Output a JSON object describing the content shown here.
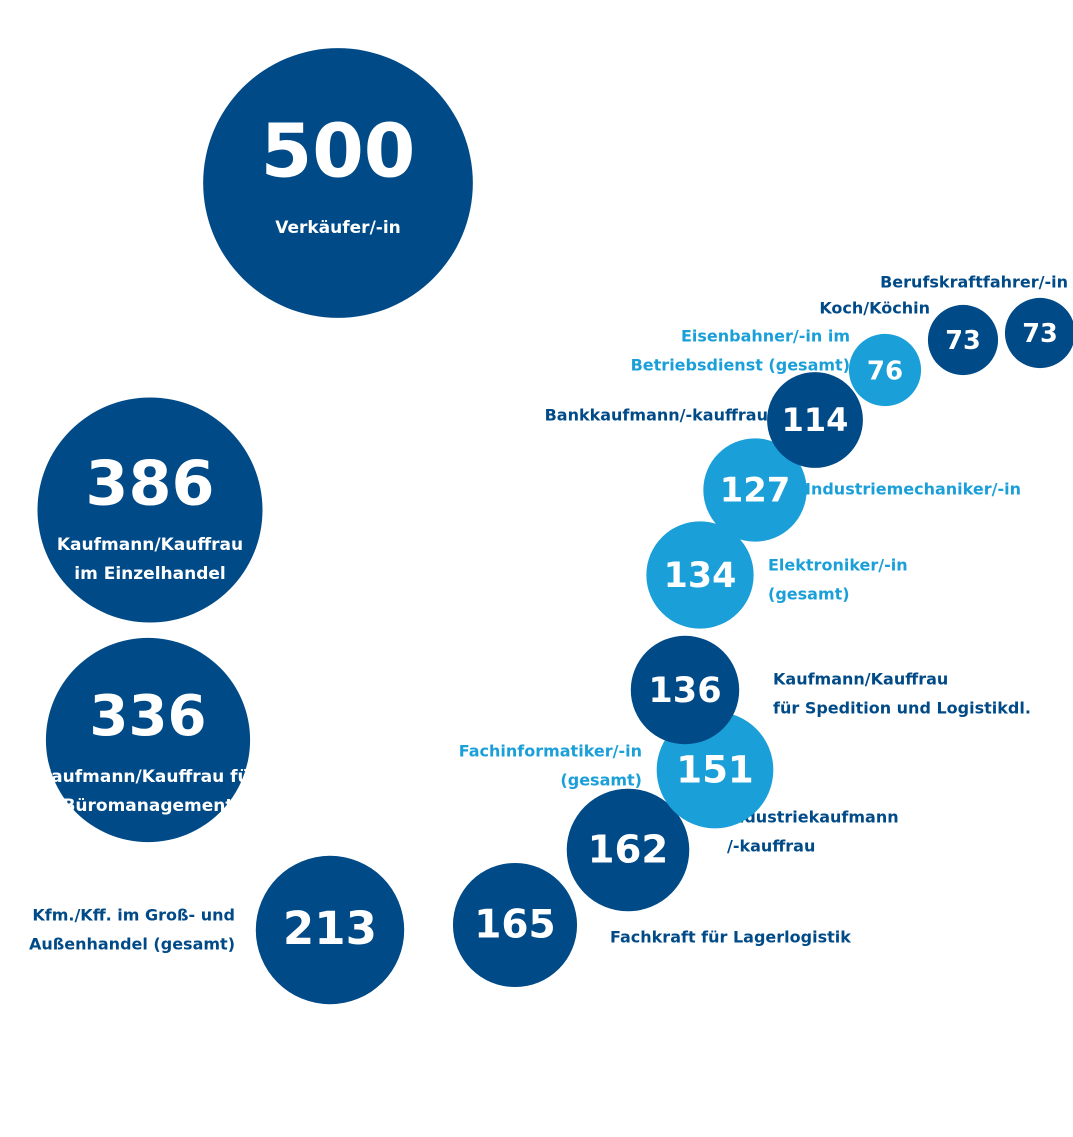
{
  "chart_data": {
    "type": "bubble",
    "colors": {
      "dark": "#004a87",
      "light": "#1a9fd9"
    },
    "items": [
      {
        "value": 500,
        "label": [
          "Verkäufer/-in"
        ],
        "tone": "dark"
      },
      {
        "value": 386,
        "label": [
          "Kaufmann/Kauffrau",
          "im Einzelhandel"
        ],
        "tone": "dark"
      },
      {
        "value": 336,
        "label": [
          "Kaufmann/Kauffrau für",
          "Büromanagement"
        ],
        "tone": "dark"
      },
      {
        "value": 213,
        "label": [
          "Kfm./Kff. im Groß- und",
          "Außenhandel (gesamt)"
        ],
        "tone": "dark"
      },
      {
        "value": 165,
        "label": [
          "Fachkraft für Lagerlogistik"
        ],
        "tone": "dark"
      },
      {
        "value": 162,
        "label": [
          "Industriekaufmann",
          "/-kauffrau"
        ],
        "tone": "dark"
      },
      {
        "value": 151,
        "label": [
          "Fachinformatiker/-in",
          "(gesamt)"
        ],
        "tone": "light"
      },
      {
        "value": 136,
        "label": [
          "Kaufmann/Kauffrau",
          "für Spedition und Logistikdl."
        ],
        "tone": "dark"
      },
      {
        "value": 134,
        "label": [
          "Elektroniker/-in",
          "(gesamt)"
        ],
        "tone": "light"
      },
      {
        "value": 127,
        "label": [
          "Industriemechaniker/-in"
        ],
        "tone": "light"
      },
      {
        "value": 114,
        "label": [
          "Bankkaufmann/-kauffrau"
        ],
        "tone": "dark"
      },
      {
        "value": 76,
        "label": [
          "Eisenbahner/-in im",
          "Betriebsdienst (gesamt)"
        ],
        "tone": "light"
      },
      {
        "value": 73,
        "label": [
          "Koch/Köchin"
        ],
        "tone": "dark"
      },
      {
        "value": 73,
        "label": [
          "Berufskraftfahrer/-in"
        ],
        "tone": "dark"
      }
    ]
  }
}
